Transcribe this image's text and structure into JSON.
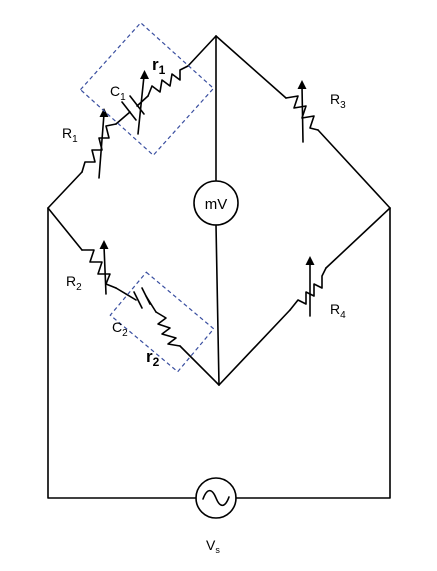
{
  "labels": {
    "r1": "r",
    "r1_sub": "1",
    "c1": "C",
    "c1_sub": "1",
    "R1": "R",
    "R1_sub": "1",
    "R2": "R",
    "R2_sub": "2",
    "c2": "C",
    "c2_sub": "2",
    "r2": "r",
    "r2_sub": "2",
    "R3": "R",
    "R3_sub": "3",
    "R4": "R",
    "R4_sub": "4",
    "meter": "mV",
    "source": "V",
    "source_sub": "s"
  },
  "colors": {
    "wire": "#000000",
    "dashed_box": "#3a4fa0"
  },
  "icons": {
    "meter": "millivoltmeter-icon",
    "source": "ac-source-icon"
  }
}
